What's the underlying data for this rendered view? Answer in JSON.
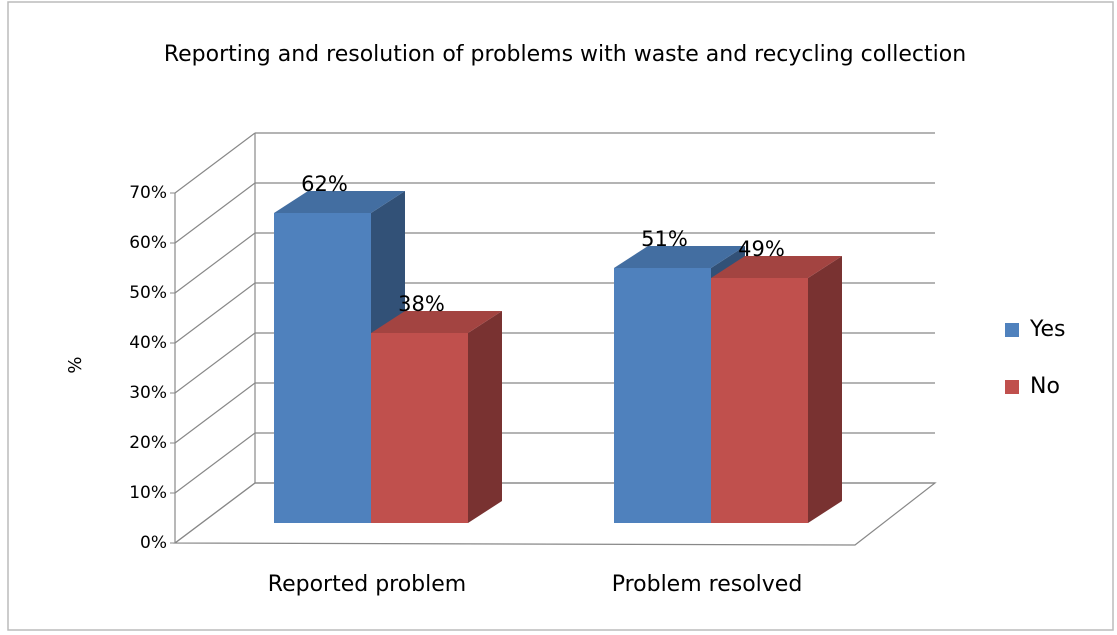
{
  "chart_data": {
    "type": "bar3d",
    "title": "Reporting and resolution of problems with waste and recycling collection",
    "y_label": "%",
    "categories": [
      "Reported problem",
      "Problem resolved"
    ],
    "series": [
      {
        "name": "Yes",
        "color": "#4f81bd",
        "values": [
          62,
          51
        ],
        "value_labels": [
          "62%",
          "51%"
        ]
      },
      {
        "name": "No",
        "color": "#c0504d",
        "values": [
          38,
          49
        ],
        "value_labels": [
          "38%",
          "49%"
        ]
      }
    ],
    "ylim": [
      0,
      70
    ],
    "yticks": [
      {
        "value": 0,
        "label": "0%"
      },
      {
        "value": 10,
        "label": "10%"
      },
      {
        "value": 20,
        "label": "20%"
      },
      {
        "value": 30,
        "label": "30%"
      },
      {
        "value": 40,
        "label": "40%"
      },
      {
        "value": 50,
        "label": "50%"
      },
      {
        "value": 60,
        "label": "60%"
      },
      {
        "value": 70,
        "label": "70%"
      }
    ],
    "grid": true,
    "legend": "right"
  }
}
